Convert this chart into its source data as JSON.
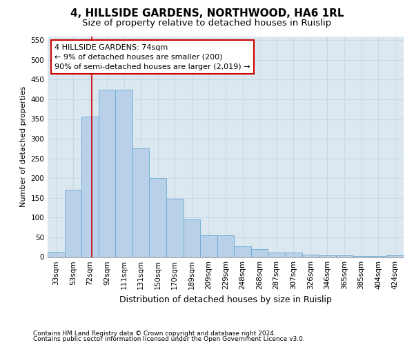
{
  "title": "4, HILLSIDE GARDENS, NORTHWOOD, HA6 1RL",
  "subtitle": "Size of property relative to detached houses in Ruislip",
  "xlabel": "Distribution of detached houses by size in Ruislip",
  "ylabel": "Number of detached properties",
  "footnote1": "Contains HM Land Registry data © Crown copyright and database right 2024.",
  "footnote2": "Contains public sector information licensed under the Open Government Licence v3.0.",
  "categories": [
    "33sqm",
    "53sqm",
    "72sqm",
    "92sqm",
    "111sqm",
    "131sqm",
    "150sqm",
    "170sqm",
    "189sqm",
    "209sqm",
    "229sqm",
    "248sqm",
    "268sqm",
    "287sqm",
    "307sqm",
    "326sqm",
    "346sqm",
    "365sqm",
    "385sqm",
    "404sqm",
    "424sqm"
  ],
  "values": [
    13,
    170,
    357,
    425,
    425,
    275,
    200,
    148,
    95,
    55,
    55,
    27,
    20,
    11,
    11,
    7,
    5,
    5,
    3,
    2,
    4
  ],
  "bar_color": "#b8d0e8",
  "bar_edge_color": "#6aaad4",
  "annotation_box_text": "4 HILLSIDE GARDENS: 74sqm\n← 9% of detached houses are smaller (200)\n90% of semi-detached houses are larger (2,019) →",
  "annotation_box_facecolor": "#ffffff",
  "annotation_box_edgecolor": "#cc0000",
  "annotation_line_color": "#cc0000",
  "ylim": [
    0,
    560
  ],
  "yticks": [
    0,
    50,
    100,
    150,
    200,
    250,
    300,
    350,
    400,
    450,
    500,
    550
  ],
  "grid_color": "#c8d8e8",
  "axes_facecolor": "#dce8f0",
  "bg_color": "#ffffff",
  "title_fontsize": 11,
  "subtitle_fontsize": 9.5,
  "ylabel_fontsize": 8,
  "xlabel_fontsize": 9,
  "tick_fontsize": 7.5,
  "annot_fontsize": 8,
  "footnote_fontsize": 6.5,
  "line_x_index": 2.1
}
